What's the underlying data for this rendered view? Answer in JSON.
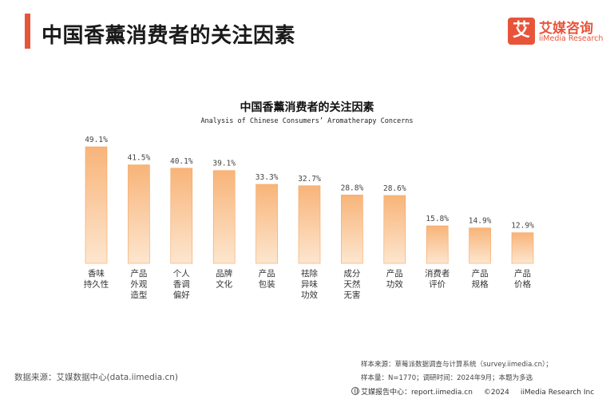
{
  "header": {
    "title": "中国香薰消费者的关注因素",
    "accent_color": "#e8543a"
  },
  "brand": {
    "mark": "艾",
    "name_cn": "艾媒咨询",
    "name_en": "iiMedia Research",
    "color": "#e8543a",
    "icon": "iimedia-logo-icon"
  },
  "chart_data": {
    "type": "bar",
    "title": "中国香薰消费者的关注因素",
    "subtitle": "Analysis of Chinese Consumers’ Aromatherapy Concerns",
    "categories": [
      [
        "香味",
        "持久性"
      ],
      [
        "产品",
        "外观",
        "造型"
      ],
      [
        "个人",
        "香调",
        "偏好"
      ],
      [
        "品牌",
        "文化"
      ],
      [
        "产品",
        "包装"
      ],
      [
        "祛除",
        "异味",
        "功效"
      ],
      [
        "成分",
        "天然",
        "无害"
      ],
      [
        "产品",
        "功效"
      ],
      [
        "消费者",
        "评价"
      ],
      [
        "产品",
        "规格"
      ],
      [
        "产品",
        "价格"
      ]
    ],
    "values": [
      49.1,
      41.5,
      40.1,
      39.1,
      33.3,
      32.7,
      28.8,
      28.6,
      15.8,
      14.9,
      12.9
    ],
    "value_labels": [
      "49.1%",
      "41.5%",
      "40.1%",
      "39.1%",
      "33.3%",
      "32.7%",
      "28.8%",
      "28.6%",
      "15.8%",
      "14.9%",
      "12.9%"
    ],
    "ylim": [
      0,
      49.1
    ],
    "grid": false,
    "bar_color_top": "#f8b479",
    "bar_color_bottom": "#fde6cf",
    "bar_edge_color": "#f4a35f"
  },
  "footer": {
    "source_left": "数据来源：艾媒数据中心(data.iimedia.cn)",
    "sample_source": "样本来源：草莓派数据调查与计算系统（survey.iimedia.cn）；",
    "sample_info": "样本量：N=1770；调研时间：2024年9月；本题为多选",
    "report_site": "艾媒报告中心：report.iimedia.cn",
    "copyright": "©2024",
    "company": "iiMedia Research  Inc"
  }
}
